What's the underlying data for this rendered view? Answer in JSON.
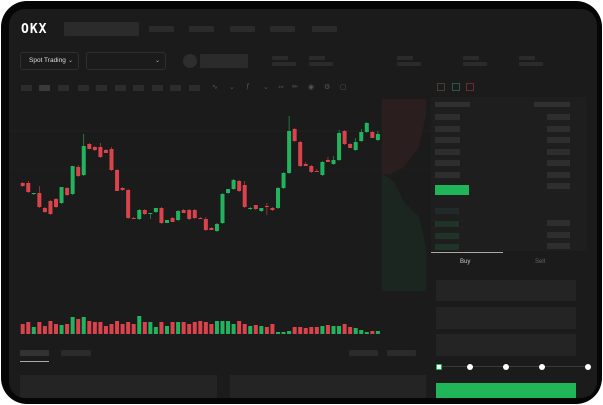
{
  "header": {
    "logo": "OKX"
  },
  "toolbar": {
    "market_dropdown": "Spot Trading"
  },
  "trade": {
    "tabs": [
      {
        "label": "Buy",
        "active": true
      },
      {
        "label": "Sell",
        "active": false
      }
    ],
    "slider_level": 0
  },
  "colors": {
    "up": "#22b35e",
    "down": "#d9434b",
    "background": "#1b1b1b",
    "accent": "#21b55a"
  },
  "icons": [
    "chevron-down-icon",
    "camera-icon",
    "settings-icon",
    "fullscreen-icon",
    "orderbook-both-icon",
    "orderbook-bids-icon",
    "orderbook-asks-icon"
  ],
  "chart_data": {
    "type": "candlestick",
    "candles": [
      [
        58,
        59,
        54,
        55
      ],
      [
        58,
        60,
        48,
        49
      ],
      [
        47,
        48,
        46,
        48
      ],
      [
        48,
        55,
        33,
        34
      ],
      [
        33,
        34,
        28,
        29
      ],
      [
        40,
        41,
        26,
        27
      ],
      [
        42,
        43,
        33,
        34
      ],
      [
        38,
        54,
        37,
        54
      ],
      [
        53,
        54,
        45,
        46
      ],
      [
        47,
        75,
        46,
        75
      ],
      [
        74,
        76,
        64,
        65
      ],
      [
        66,
        107,
        65,
        95
      ],
      [
        97,
        98,
        92,
        92
      ],
      [
        94,
        95,
        90,
        91
      ],
      [
        94,
        98,
        83,
        84
      ],
      [
        91,
        92,
        88,
        88
      ],
      [
        92,
        94,
        70,
        71
      ],
      [
        71,
        72,
        50,
        50
      ],
      [
        53,
        54,
        50,
        51
      ],
      [
        51,
        52,
        22,
        23
      ],
      [
        23,
        24,
        22,
        22
      ],
      [
        22,
        32,
        21,
        31
      ],
      [
        31,
        32,
        26,
        27
      ],
      [
        27,
        28,
        22,
        28
      ],
      [
        29,
        33,
        28,
        33
      ],
      [
        33,
        34,
        17,
        18
      ],
      [
        18,
        21,
        18,
        21
      ],
      [
        23,
        24,
        19,
        19
      ],
      [
        21,
        31,
        20,
        30
      ],
      [
        31,
        32,
        28,
        28
      ],
      [
        31,
        32,
        21,
        22
      ],
      [
        31,
        32,
        22,
        23
      ],
      [
        23,
        24,
        22,
        22
      ],
      [
        22,
        24,
        10,
        11
      ],
      [
        13,
        14,
        11,
        11
      ],
      [
        10,
        18,
        9,
        17
      ],
      [
        18,
        48,
        17,
        47
      ],
      [
        48,
        52,
        47,
        52
      ],
      [
        52,
        62,
        51,
        61
      ],
      [
        60,
        61,
        49,
        50
      ],
      [
        56,
        60,
        33,
        34
      ],
      [
        32,
        34,
        31,
        33
      ],
      [
        36,
        36,
        31,
        32
      ],
      [
        30,
        33,
        29,
        33
      ],
      [
        35,
        38,
        26,
        34
      ],
      [
        33,
        34,
        30,
        31
      ],
      [
        33,
        54,
        32,
        53
      ],
      [
        53,
        69,
        52,
        68
      ],
      [
        68,
        125,
        67,
        110
      ],
      [
        112,
        113,
        99,
        100
      ],
      [
        99,
        100,
        74,
        75
      ],
      [
        77,
        79,
        75,
        75
      ],
      [
        75,
        76,
        68,
        69
      ],
      [
        70,
        72,
        69,
        69
      ],
      [
        66,
        80,
        65,
        79
      ],
      [
        81,
        84,
        79,
        79
      ],
      [
        77,
        85,
        76,
        81
      ],
      [
        81,
        111,
        80,
        108
      ],
      [
        110,
        111,
        96,
        97
      ],
      [
        97,
        98,
        93,
        93
      ],
      [
        91,
        103,
        90,
        99
      ],
      [
        100,
        112,
        99,
        109
      ],
      [
        109,
        119,
        108,
        118
      ],
      [
        109,
        110,
        103,
        103
      ],
      [
        101,
        110,
        100,
        107
      ]
    ],
    "volume": [
      10,
      12,
      7,
      12,
      8,
      13,
      10,
      9,
      10,
      17,
      15,
      17,
      13,
      12,
      12,
      8,
      10,
      13,
      10,
      12,
      10,
      18,
      12,
      12,
      7,
      12,
      8,
      12,
      12,
      12,
      10,
      12,
      13,
      12,
      10,
      13,
      13,
      13,
      10,
      13,
      10,
      8,
      9,
      8,
      7,
      10,
      2,
      2,
      3,
      7,
      7,
      6,
      7,
      7,
      8,
      9,
      8,
      8,
      10,
      7,
      6,
      4,
      2,
      3,
      3
    ],
    "depth": {
      "asks": "top",
      "bids": "bottom"
    }
  }
}
